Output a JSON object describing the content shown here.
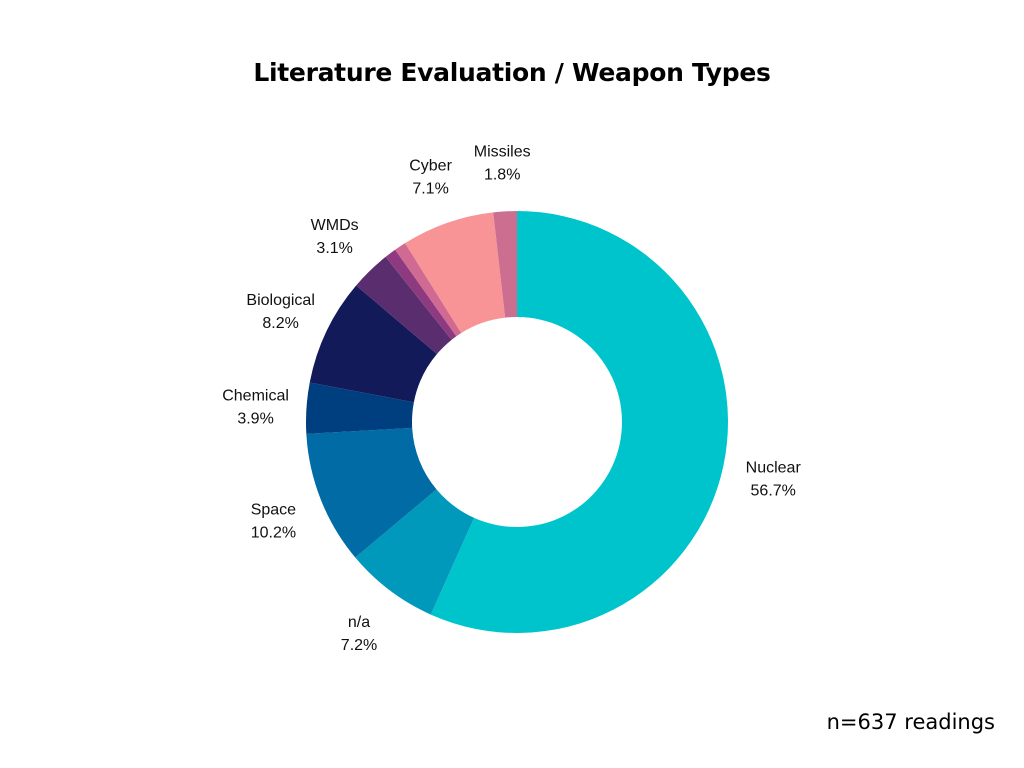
{
  "title": "Literature Evaluation / Weapon Types",
  "footnote": "n=637 readings",
  "chart_data": {
    "type": "pie",
    "title": "Literature Evaluation / Weapon Types",
    "donut": true,
    "order": "clockwise from top",
    "slices": [
      {
        "label": "Nuclear",
        "value": 56.7,
        "value_label": "56.7%",
        "color": "#00C4CC"
      },
      {
        "label": "n/a",
        "value": 7.2,
        "value_label": "7.2%",
        "color": "#0099BC"
      },
      {
        "label": "Space",
        "value": 10.2,
        "value_label": "10.2%",
        "color": "#006BA4"
      },
      {
        "label": "Chemical",
        "value": 3.9,
        "value_label": "3.9%",
        "color": "#003F7F"
      },
      {
        "label": "Biological",
        "value": 8.2,
        "value_label": "8.2%",
        "color": "#121A5A"
      },
      {
        "label": "WMDs",
        "value": 3.1,
        "value_label": "3.1%",
        "color": "#5A2D6E"
      },
      {
        "label": "",
        "value": 0.9,
        "value_label": "",
        "color": "#8E3A80"
      },
      {
        "label": "",
        "value": 0.9,
        "value_label": "",
        "color": "#D06A92"
      },
      {
        "label": "Cyber",
        "value": 7.1,
        "value_label": "7.1%",
        "color": "#F89496"
      },
      {
        "label": "Missiles",
        "value": 1.8,
        "value_label": "1.8%",
        "color": "#CC6E90"
      }
    ]
  }
}
